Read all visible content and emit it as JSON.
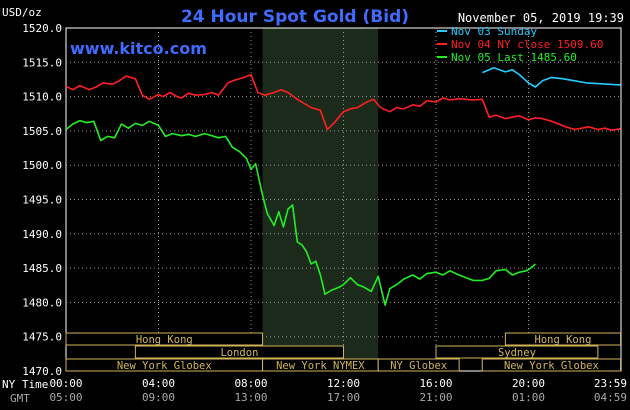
{
  "chart_data": {
    "type": "line",
    "title": "24 Hour Spot Gold (Bid)",
    "unit_label": "USD/oz",
    "watermark": "www.kitco.com",
    "timestamp": "November 05, 2019 19:39",
    "ylim": [
      1470,
      1520
    ],
    "y_ticks": [
      "1520.0",
      "1515.0",
      "1510.0",
      "1505.0",
      "1500.0",
      "1495.0",
      "1490.0",
      "1485.0",
      "1480.0",
      "1475.0",
      "1470.0"
    ],
    "xlim": [
      0,
      24
    ],
    "x_ticks_ny": [
      "00:00",
      "04:00",
      "08:00",
      "12:00",
      "16:00",
      "20:00",
      "23:59"
    ],
    "x_ticks_gmt": [
      "05:00",
      "09:00",
      "13:00",
      "17:00",
      "21:00",
      "01:00",
      "04:59"
    ],
    "x_axis_label_ny": "NY Time",
    "x_axis_label_gmt": "GMT",
    "highlight_hours": [
      8.5,
      13.5
    ],
    "legend": [
      {
        "label": "Nov 03 Sunday",
        "color": "#22ccff"
      },
      {
        "label": "Nov 04 NY close 1509.60",
        "color": "#ff2020"
      },
      {
        "label": "Nov 05 Last 1485.60",
        "color": "#22ee22"
      }
    ],
    "series": [
      {
        "name": "Nov 03 Sunday",
        "color": "#22ccff",
        "x": [
          18.0,
          18.5,
          19.0,
          19.3,
          19.6,
          20.0,
          20.3,
          20.6,
          21.0,
          21.5,
          22.0,
          22.5,
          23.0,
          23.5,
          23.98
        ],
        "y": [
          1513.5,
          1514.2,
          1513.6,
          1513.9,
          1513.2,
          1512.0,
          1511.4,
          1512.3,
          1512.8,
          1512.6,
          1512.3,
          1512.0,
          1511.9,
          1511.8,
          1511.7
        ]
      },
      {
        "name": "Nov 04 NY close 1509.60",
        "color": "#ff2020",
        "x": [
          0.0,
          0.3,
          0.6,
          1.0,
          1.3,
          1.6,
          2.0,
          2.3,
          2.6,
          3.0,
          3.3,
          3.6,
          4.0,
          4.2,
          4.5,
          4.8,
          5.0,
          5.3,
          5.6,
          6.0,
          6.3,
          6.6,
          7.0,
          7.3,
          7.6,
          8.0,
          8.3,
          8.6,
          9.0,
          9.3,
          9.6,
          10.0,
          10.3,
          10.6,
          11.0,
          11.3,
          11.6,
          12.0,
          12.3,
          12.6,
          13.0,
          13.3,
          13.6,
          14.0,
          14.3,
          14.6,
          15.0,
          15.3,
          15.6,
          16.0,
          16.3,
          16.6,
          17.0,
          17.3,
          17.6,
          18.0,
          18.3,
          18.6,
          19.0,
          19.3,
          19.6,
          20.0,
          20.3,
          20.6,
          21.0,
          21.3,
          21.6,
          22.0,
          22.3,
          22.6,
          23.0,
          23.3,
          23.6,
          23.98
        ],
        "y": [
          1511.5,
          1511.0,
          1511.6,
          1511.0,
          1511.4,
          1512.0,
          1511.8,
          1512.3,
          1513.0,
          1512.6,
          1510.2,
          1509.6,
          1510.3,
          1510.0,
          1510.6,
          1510.0,
          1509.8,
          1510.5,
          1510.2,
          1510.3,
          1510.6,
          1510.2,
          1512.0,
          1512.4,
          1512.7,
          1513.2,
          1510.6,
          1510.2,
          1510.6,
          1511.0,
          1510.6,
          1509.6,
          1509.0,
          1508.4,
          1508.0,
          1505.2,
          1506.2,
          1507.8,
          1508.2,
          1508.4,
          1509.2,
          1509.6,
          1508.4,
          1507.8,
          1508.4,
          1508.2,
          1508.8,
          1508.6,
          1509.4,
          1509.2,
          1509.8,
          1509.5,
          1509.7,
          1509.6,
          1509.5,
          1509.6,
          1507.0,
          1507.3,
          1506.8,
          1507.0,
          1507.2,
          1506.6,
          1506.9,
          1506.8,
          1506.4,
          1506.0,
          1505.6,
          1505.2,
          1505.4,
          1505.6,
          1505.2,
          1505.4,
          1505.1,
          1505.3
        ]
      },
      {
        "name": "Nov 05 Last 1485.60",
        "color": "#22ee22",
        "x": [
          0.0,
          0.3,
          0.6,
          0.9,
          1.2,
          1.5,
          1.8,
          2.1,
          2.4,
          2.7,
          3.0,
          3.3,
          3.6,
          4.0,
          4.3,
          4.6,
          5.0,
          5.3,
          5.6,
          6.0,
          6.3,
          6.6,
          6.9,
          7.2,
          7.5,
          7.8,
          8.0,
          8.2,
          8.5,
          8.7,
          9.0,
          9.2,
          9.4,
          9.6,
          9.8,
          10.0,
          10.2,
          10.4,
          10.6,
          10.8,
          11.0,
          11.2,
          11.5,
          11.8,
          12.0,
          12.3,
          12.6,
          12.9,
          13.2,
          13.5,
          13.8,
          14.0,
          14.3,
          14.6,
          15.0,
          15.3,
          15.6,
          16.0,
          16.3,
          16.6,
          17.0,
          17.3,
          17.6,
          18.0,
          18.3,
          18.6,
          19.0,
          19.3,
          19.6,
          19.9,
          20.1,
          20.3
        ],
        "y": [
          1505.2,
          1506.0,
          1506.5,
          1506.2,
          1506.4,
          1503.6,
          1504.2,
          1504.0,
          1506.0,
          1505.4,
          1506.1,
          1505.8,
          1506.4,
          1505.8,
          1504.2,
          1504.6,
          1504.3,
          1504.5,
          1504.2,
          1504.6,
          1504.3,
          1504.0,
          1504.2,
          1502.6,
          1502.0,
          1501.0,
          1499.4,
          1500.2,
          1495.6,
          1493.0,
          1491.2,
          1493.2,
          1491.0,
          1493.6,
          1494.2,
          1488.8,
          1488.4,
          1487.4,
          1485.6,
          1486.0,
          1484.0,
          1481.2,
          1481.8,
          1482.2,
          1482.6,
          1483.6,
          1482.6,
          1482.2,
          1481.6,
          1483.8,
          1479.6,
          1482.0,
          1482.6,
          1483.4,
          1484.0,
          1483.4,
          1484.2,
          1484.4,
          1484.0,
          1484.6,
          1484.0,
          1483.6,
          1483.2,
          1483.2,
          1483.5,
          1484.6,
          1484.8,
          1484.0,
          1484.4,
          1484.6,
          1485.0,
          1485.6
        ]
      }
    ],
    "sessions": [
      {
        "label": "Hong Kong",
        "row": 0,
        "start": 0.0,
        "end": 8.5
      },
      {
        "label": "Hong Kong",
        "row": 0,
        "start": 19.0,
        "end": 23.98
      },
      {
        "label": "London",
        "row": 1,
        "start": 3.0,
        "end": 12.0
      },
      {
        "label": "Sydney",
        "row": 1,
        "start": 16.0,
        "end": 23.0
      },
      {
        "label": "New York Globex",
        "row": 2,
        "start": 0.0,
        "end": 8.5
      },
      {
        "label": "New York NYMEX",
        "row": 2,
        "start": 8.5,
        "end": 13.5
      },
      {
        "label": "NY Globex",
        "row": 2,
        "start": 13.5,
        "end": 17.0
      },
      {
        "label": "New York Globex",
        "row": 2,
        "start": 18.0,
        "end": 23.98
      }
    ]
  }
}
